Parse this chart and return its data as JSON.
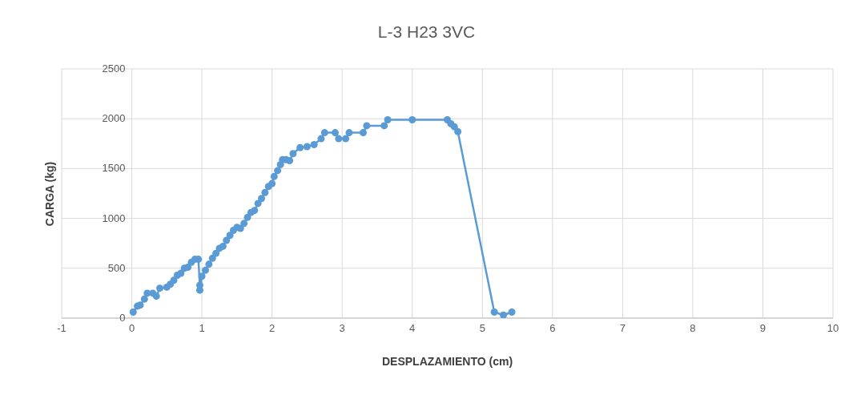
{
  "chart_data": {
    "type": "line",
    "title": "L-3 H23 3VC",
    "xlabel": "DESPLAZAMIENTO (cm)",
    "ylabel": "CARGA (kg)",
    "xlim": [
      -1,
      10
    ],
    "xticks": [
      -1,
      0,
      1,
      2,
      3,
      4,
      5,
      6,
      7,
      8,
      9,
      10
    ],
    "ylim": [
      0,
      2500
    ],
    "yticks": [
      0,
      500,
      1000,
      1500,
      2000,
      2500
    ],
    "grid": true,
    "legend": false,
    "marker": "circle",
    "line_style": "solid",
    "series": [
      {
        "color": "#5b9bd5",
        "x": [
          0.02,
          0.08,
          0.12,
          0.18,
          0.22,
          0.3,
          0.35,
          0.4,
          0.5,
          0.55,
          0.6,
          0.65,
          0.7,
          0.75,
          0.8,
          0.85,
          0.9,
          0.95,
          0.97,
          0.97,
          1.0,
          1.05,
          1.1,
          1.15,
          1.2,
          1.25,
          1.3,
          1.35,
          1.4,
          1.45,
          1.5,
          1.55,
          1.6,
          1.65,
          1.7,
          1.75,
          1.8,
          1.85,
          1.9,
          1.95,
          2.0,
          2.03,
          2.08,
          2.12,
          2.15,
          2.2,
          2.25,
          2.3,
          2.4,
          2.5,
          2.6,
          2.7,
          2.75,
          2.9,
          2.95,
          3.05,
          3.1,
          3.3,
          3.35,
          3.6,
          3.65,
          4.0,
          4.5,
          4.55,
          4.6,
          4.65,
          5.17,
          5.3,
          5.42
        ],
        "values": [
          60,
          120,
          130,
          190,
          250,
          250,
          220,
          300,
          310,
          340,
          380,
          430,
          450,
          500,
          510,
          560,
          590,
          590,
          330,
          280,
          420,
          480,
          540,
          600,
          650,
          700,
          720,
          780,
          830,
          880,
          910,
          900,
          950,
          1010,
          1060,
          1080,
          1150,
          1200,
          1260,
          1320,
          1350,
          1420,
          1480,
          1540,
          1590,
          1590,
          1580,
          1650,
          1710,
          1720,
          1740,
          1800,
          1860,
          1860,
          1800,
          1800,
          1860,
          1860,
          1930,
          1930,
          1990,
          1990,
          1990,
          1950,
          1920,
          1870,
          60,
          30,
          60
        ]
      }
    ]
  }
}
